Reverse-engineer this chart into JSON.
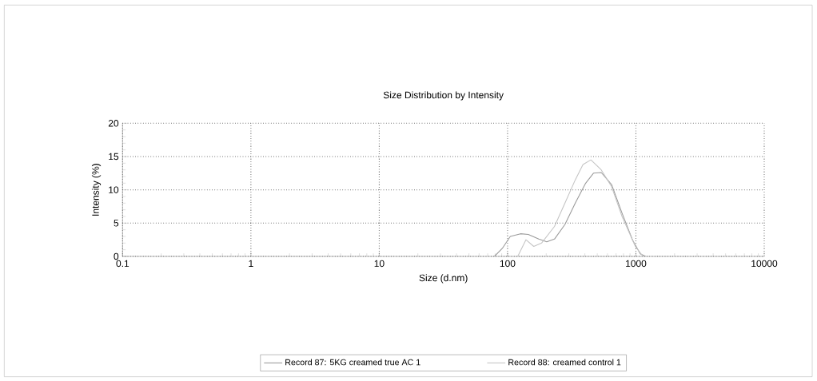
{
  "chart_data": {
    "type": "line",
    "title": "Size Distribution by Intensity",
    "xlabel": "Size (d.nm)",
    "ylabel": "Intensity (%)",
    "log": "x",
    "xlim": [
      0.1,
      10000
    ],
    "xticks": [
      0.1,
      1,
      10,
      100,
      1000,
      10000
    ],
    "ylim": [
      0,
      20
    ],
    "yticks": [
      0,
      5,
      10,
      15,
      20
    ],
    "grid": true,
    "legend": "bottom",
    "series": [
      {
        "name": "Record 87: 5KG creamed true AC 1",
        "color": "#9a9a9a",
        "x": [
          79,
          91,
          105,
          126,
          145,
          175,
          202,
          232,
          280,
          337,
          406,
          467,
          537,
          646,
          780,
          940,
          1081,
          1190
        ],
        "values": [
          0,
          1.2,
          3.0,
          3.4,
          3.3,
          2.6,
          2.2,
          2.6,
          4.8,
          8.0,
          11.0,
          12.5,
          12.6,
          10.8,
          6.5,
          2.5,
          0.4,
          0
        ]
      },
      {
        "name": "Record 88:  creamed control 1",
        "color": "#c4c4c4",
        "x": [
          120,
          139,
          160,
          184,
          232,
          280,
          337,
          387,
          446,
          537,
          646,
          780,
          990,
          1137
        ],
        "values": [
          0,
          2.5,
          1.5,
          2.0,
          4.5,
          8.0,
          11.5,
          13.8,
          14.5,
          13.0,
          10.5,
          6.0,
          1.5,
          0
        ]
      }
    ]
  }
}
